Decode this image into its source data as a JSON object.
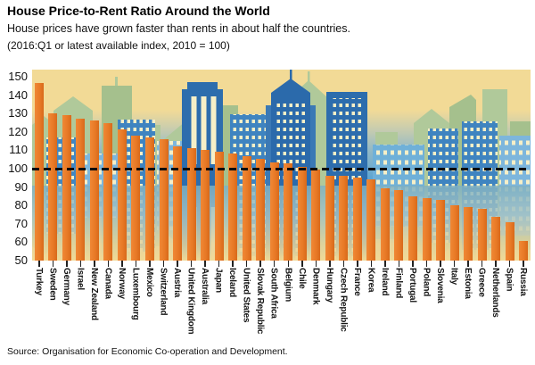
{
  "header": {
    "title": "House Price-to-Rent Ratio Around the World",
    "subtitle": "House prices have grown faster than rents in about half the countries.",
    "note": "(2016:Q1 or latest available index, 2010 = 100)"
  },
  "source": "Source: Organisation for Economic Co-operation and Development.",
  "colors": {
    "bar_orange": "#e87a26",
    "plot_background_tan": "#f2da96",
    "band_blue": "#4f9fd4",
    "building_dark_blue": "#2d6dad",
    "building_mid_blue": "#3f84c0",
    "building_light_blue": "#7db6dc",
    "building_green": "#b0c99a",
    "window_cream": "#f6efc7",
    "reference_line": "#0d0d0d"
  },
  "chart_data": {
    "type": "bar",
    "title": "House Price-to-Rent Ratio Around the World",
    "subtitle": "House prices have grown faster than rents in about half the countries.",
    "units_note": "(2016:Q1 or latest available index, 2010 = 100)",
    "xlabel": "",
    "ylabel": "",
    "ylim": [
      50,
      150
    ],
    "yticks": [
      150,
      140,
      130,
      120,
      110,
      100,
      90,
      80,
      70,
      60,
      50
    ],
    "reference_line": 100,
    "grid": false,
    "legend": false,
    "categories": [
      "Turkey",
      "Sweden",
      "Germany",
      "Israel",
      "New Zealand",
      "Canada",
      "Norway",
      "Luxembourg",
      "Mexico",
      "Switzerland",
      "Austria",
      "United Kingdom",
      "Australia",
      "Japan",
      "Iceland",
      "United States",
      "Slovak Republic",
      "South Africa",
      "Belgium",
      "Chile",
      "Denmark",
      "Hungary",
      "Czech Republic",
      "France",
      "Korea",
      "Ireland",
      "Finland",
      "Portugal",
      "Poland",
      "Slovenia",
      "Italy",
      "Estonia",
      "Greece",
      "Netherlands",
      "Spain",
      "Russia"
    ],
    "values": [
      146.5,
      130,
      129,
      127,
      126,
      125,
      121.5,
      118,
      117,
      116,
      112,
      111,
      110,
      109,
      108.5,
      107,
      105.5,
      103.5,
      103,
      101,
      99.5,
      96,
      96,
      95,
      94,
      89.5,
      88.5,
      85,
      84,
      83,
      80,
      79,
      78,
      74,
      71,
      60.5
    ]
  }
}
